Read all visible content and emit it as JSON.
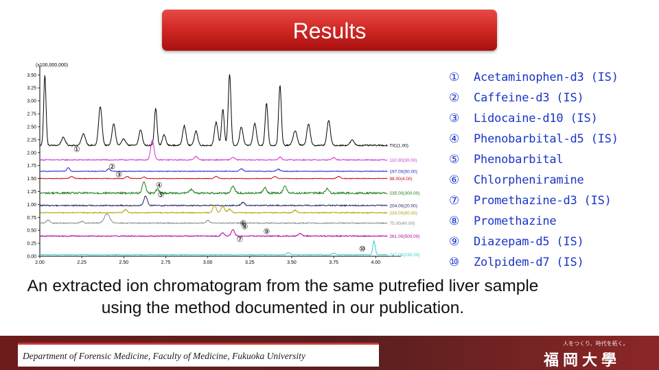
{
  "slide": {
    "title": "Results",
    "caption": "An extracted ion chromatogram from the same putrefied liver sample using the method documented in our publication.",
    "footer_text": "Department of Forensic Medicine, Faculty of Medicine, Fukuoka University",
    "footer_slogan": "人をつくり、時代を拓く。",
    "footer_logo": "福岡大學"
  },
  "legend": [
    {
      "num": "①",
      "name": "Acetaminophen-d3 (IS)"
    },
    {
      "num": "②",
      "name": "Caffeine-d3 (IS)"
    },
    {
      "num": "③",
      "name": "Lidocaine-d10 (IS)"
    },
    {
      "num": "④",
      "name": "Phenobarbital-d5 (IS)"
    },
    {
      "num": "⑤",
      "name": "Phenobarbital"
    },
    {
      "num": "⑥",
      "name": "Chlorpheniramine"
    },
    {
      "num": "⑦",
      "name": "Promethazine-d3 (IS)"
    },
    {
      "num": "⑧",
      "name": "Promethazine"
    },
    {
      "num": "⑨",
      "name": "Diazepam-d5 (IS)"
    },
    {
      "num": "⑩",
      "name": "Zolpidem-d7 (IS)"
    }
  ],
  "chart_data": {
    "type": "line",
    "scale_label": "(x100,000,000)",
    "xlim": [
      2.0,
      4.15
    ],
    "ylim": [
      0.0,
      3.65
    ],
    "xticks": [
      2.0,
      2.25,
      2.5,
      2.75,
      3.0,
      3.25,
      3.5,
      3.75,
      4.0
    ],
    "xtick_labels": [
      "2.00",
      "2.25",
      "2.50",
      "2.75",
      "3.00",
      "3.25",
      "3.50",
      "3.75",
      "4.00"
    ],
    "yticks": [
      0.0,
      0.25,
      0.5,
      0.75,
      1.0,
      1.25,
      1.5,
      1.75,
      2.0,
      2.25,
      2.5,
      2.75,
      3.0,
      3.25,
      3.5
    ],
    "ytick_labels": [
      "0.00",
      "0.25",
      "0.50",
      "0.75",
      "1.00",
      "1.25",
      "1.50",
      "1.75",
      "2.00",
      "2.25",
      "2.50",
      "2.75",
      "3.00",
      "3.25",
      "3.50"
    ],
    "grid": false,
    "series": [
      {
        "name": "TIC(1.00)",
        "color": "#000000",
        "baseline": 2.14,
        "noise": 0.012,
        "peaks": [
          [
            2.03,
            1.35,
            0.007
          ],
          [
            2.14,
            0.15,
            0.012
          ],
          [
            2.26,
            0.22,
            0.012
          ],
          [
            2.36,
            0.75,
            0.01
          ],
          [
            2.44,
            0.42,
            0.01
          ],
          [
            2.5,
            0.12,
            0.012
          ],
          [
            2.6,
            0.3,
            0.01
          ],
          [
            2.69,
            0.72,
            0.008
          ],
          [
            2.74,
            0.2,
            0.01
          ],
          [
            2.86,
            0.38,
            0.01
          ],
          [
            2.93,
            0.28,
            0.01
          ],
          [
            3.05,
            0.45,
            0.01
          ],
          [
            3.09,
            0.7,
            0.008
          ],
          [
            3.13,
            1.38,
            0.008
          ],
          [
            3.2,
            0.35,
            0.01
          ],
          [
            3.28,
            0.42,
            0.01
          ],
          [
            3.35,
            0.82,
            0.008
          ],
          [
            3.43,
            1.15,
            0.008
          ],
          [
            3.52,
            0.28,
            0.012
          ],
          [
            3.6,
            0.42,
            0.01
          ],
          [
            3.72,
            0.48,
            0.01
          ],
          [
            3.86,
            0.1,
            0.012
          ]
        ]
      },
      {
        "name": "110.00(30.00)",
        "color": "#cc33cc",
        "baseline": 1.86,
        "noise": 0.01,
        "peaks": [
          [
            2.67,
            0.38,
            0.01
          ],
          [
            2.93,
            0.07,
            0.01
          ],
          [
            3.15,
            0.05,
            0.01
          ],
          [
            3.43,
            0.05,
            0.01
          ],
          [
            3.75,
            0.04,
            0.01
          ]
        ]
      },
      {
        "name": "197.00(50.00)",
        "color": "#1a1acc",
        "baseline": 1.64,
        "noise": 0.006,
        "peaks": [
          [
            2.17,
            0.07,
            0.008
          ],
          [
            2.41,
            0.05,
            0.008
          ],
          [
            3.2,
            0.05,
            0.01
          ],
          [
            3.42,
            0.04,
            0.01
          ]
        ]
      },
      {
        "name": "98.00(4.00)",
        "color": "#cc0000",
        "baseline": 1.5,
        "noise": 0.006,
        "peaks": [
          [
            2.19,
            0.04,
            0.01
          ],
          [
            2.52,
            0.04,
            0.01
          ],
          [
            2.62,
            0.03,
            0.01
          ],
          [
            3.05,
            0.04,
            0.01
          ],
          [
            3.4,
            0.04,
            0.01
          ],
          [
            3.78,
            0.04,
            0.01
          ]
        ]
      },
      {
        "name": "235.00(300.00)",
        "color": "#1a7a1a",
        "baseline": 1.22,
        "noise": 0.018,
        "peaks": [
          [
            2.62,
            0.22,
            0.01
          ],
          [
            2.7,
            0.07,
            0.01
          ],
          [
            2.9,
            0.07,
            0.01
          ],
          [
            3.15,
            0.14,
            0.01
          ],
          [
            3.34,
            0.1,
            0.01
          ],
          [
            3.46,
            0.14,
            0.01
          ],
          [
            3.71,
            0.08,
            0.01
          ]
        ]
      },
      {
        "name": "204.00(20.00)",
        "color": "#222266",
        "baseline": 0.98,
        "noise": 0.012,
        "peaks": [
          [
            2.63,
            0.18,
            0.01
          ],
          [
            3.21,
            0.06,
            0.01
          ]
        ]
      },
      {
        "name": "233.00(60.00)",
        "color": "#b3a100",
        "baseline": 0.84,
        "noise": 0.01,
        "peaks": [
          [
            2.51,
            0.06,
            0.01
          ],
          [
            3.04,
            0.14,
            0.01
          ],
          [
            3.09,
            0.12,
            0.01
          ],
          [
            3.13,
            0.07,
            0.01
          ],
          [
            3.52,
            0.05,
            0.01
          ]
        ]
      },
      {
        "name": "75.00(40.00)",
        "color": "#888888",
        "baseline": 0.64,
        "noise": 0.01,
        "peaks": [
          [
            2.05,
            0.06,
            0.01
          ],
          [
            2.25,
            0.03,
            0.01
          ],
          [
            2.4,
            0.18,
            0.016
          ],
          [
            3.0,
            0.05,
            0.01
          ]
        ]
      },
      {
        "name": "261.00(500.00)",
        "color": "#aa0099",
        "baseline": 0.39,
        "noise": 0.01,
        "peaks": [
          [
            3.09,
            0.06,
            0.01
          ],
          [
            3.15,
            0.12,
            0.01
          ],
          [
            3.55,
            0.05,
            0.01
          ]
        ]
      },
      {
        "name": "242.00(230.00)",
        "color": "#33cccc",
        "baseline": 0.03,
        "noise": 0.008,
        "peaks": [
          [
            3.48,
            0.04,
            0.01
          ],
          [
            3.75,
            0.03,
            0.01
          ],
          [
            3.99,
            0.26,
            0.007
          ]
        ]
      }
    ],
    "annotations": [
      {
        "label": "①",
        "x": 2.22,
        "y": 2.02
      },
      {
        "label": "②",
        "x": 2.43,
        "y": 1.68
      },
      {
        "label": "③",
        "x": 2.47,
        "y": 1.53
      },
      {
        "label": "④",
        "x": 2.71,
        "y": 1.32
      },
      {
        "label": "⑤",
        "x": 2.72,
        "y": 1.14
      },
      {
        "label": "⑥",
        "x": 3.21,
        "y": 0.59
      },
      {
        "label": "⑦",
        "x": 3.19,
        "y": 0.28
      },
      {
        "label": "⑧",
        "x": 3.22,
        "y": 0.52
      },
      {
        "label": "⑨",
        "x": 3.35,
        "y": 0.43
      },
      {
        "label": "⑩",
        "x": 3.92,
        "y": 0.09
      }
    ]
  }
}
